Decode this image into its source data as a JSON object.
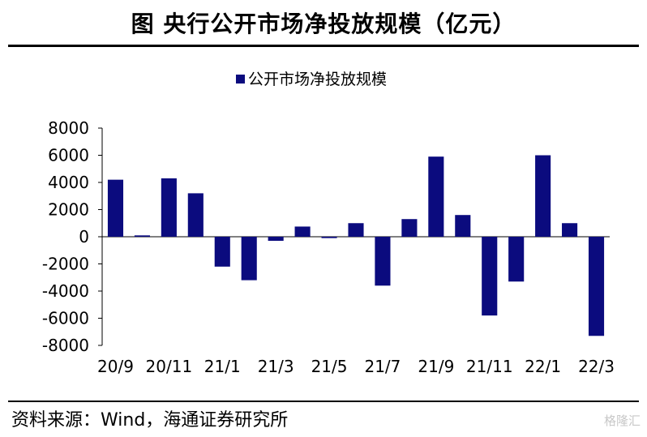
{
  "title": "图  央行公开市场净投放规模（亿元）",
  "source": "资料来源：Wind，海通证券研究所",
  "watermark": "格隆汇",
  "chart_data": {
    "type": "bar",
    "legend": "公开市场净投放规模",
    "legend_position": "top-center",
    "color": "#0b0b7e",
    "categories": [
      "20/9",
      "20/10",
      "20/11",
      "20/12",
      "21/1",
      "21/2",
      "21/3",
      "21/4",
      "21/5",
      "21/6",
      "21/7",
      "21/8",
      "21/9",
      "21/10",
      "21/11",
      "21/12",
      "22/1",
      "22/2",
      "22/3"
    ],
    "x_tick_labels": [
      "20/9",
      "20/11",
      "21/1",
      "21/3",
      "21/5",
      "21/7",
      "21/9",
      "21/11",
      "22/1",
      "22/3"
    ],
    "values": [
      4200,
      100,
      4300,
      3200,
      -2200,
      -3200,
      -300,
      750,
      -100,
      1000,
      -3600,
      1300,
      5900,
      1600,
      -5800,
      -3300,
      6000,
      1000,
      -7300
    ],
    "ylim": [
      -8000,
      8000
    ],
    "yticks": [
      -8000,
      -6000,
      -4000,
      -2000,
      0,
      2000,
      4000,
      6000,
      8000
    ],
    "grid": false
  }
}
